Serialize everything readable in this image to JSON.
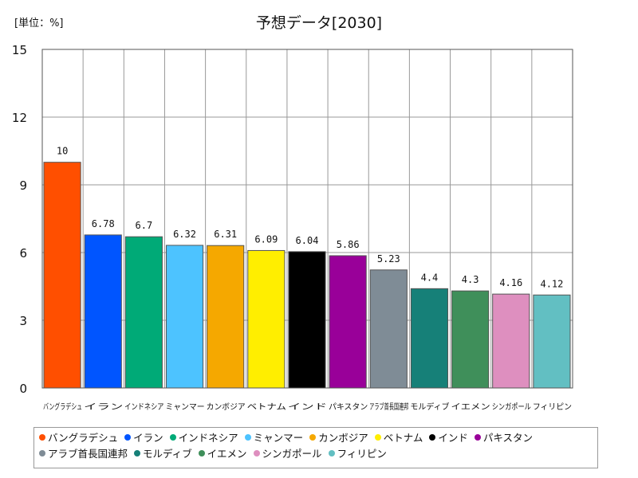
{
  "chart_data": {
    "type": "bar",
    "title": "予想データ[2030]",
    "unit_label": "[単位：%]",
    "xlabel": "",
    "ylabel": "",
    "ylim": [
      0,
      15
    ],
    "yticks": [
      "0",
      "3",
      "6",
      "9",
      "12",
      "15"
    ],
    "grid": true,
    "legend_position": "bottom",
    "categories": [
      "バングラデシュ",
      "イラン",
      "インドネシア",
      "ミャンマー",
      "カンボジア",
      "ベトナム",
      "インド",
      "パキスタン",
      "アラブ首長国連邦",
      "モルディブ",
      "イエメン",
      "シンガポール",
      "フィリピン"
    ],
    "values": [
      10,
      6.78,
      6.7,
      6.32,
      6.31,
      6.09,
      6.04,
      5.86,
      5.23,
      4.4,
      4.3,
      4.16,
      4.12
    ],
    "value_labels": [
      "10",
      "6.78",
      "6.7",
      "6.32",
      "6.31",
      "6.09",
      "6.04",
      "5.86",
      "5.23",
      "4.4",
      "4.3",
      "4.16",
      "4.12"
    ],
    "colors": [
      "#ff4f00",
      "#0055ff",
      "#00aa77",
      "#4dc3ff",
      "#f5a800",
      "#ffee00",
      "#000000",
      "#990099",
      "#7f8c96",
      "#168078",
      "#3f8f5a",
      "#de8fbf",
      "#62bfc2"
    ]
  }
}
